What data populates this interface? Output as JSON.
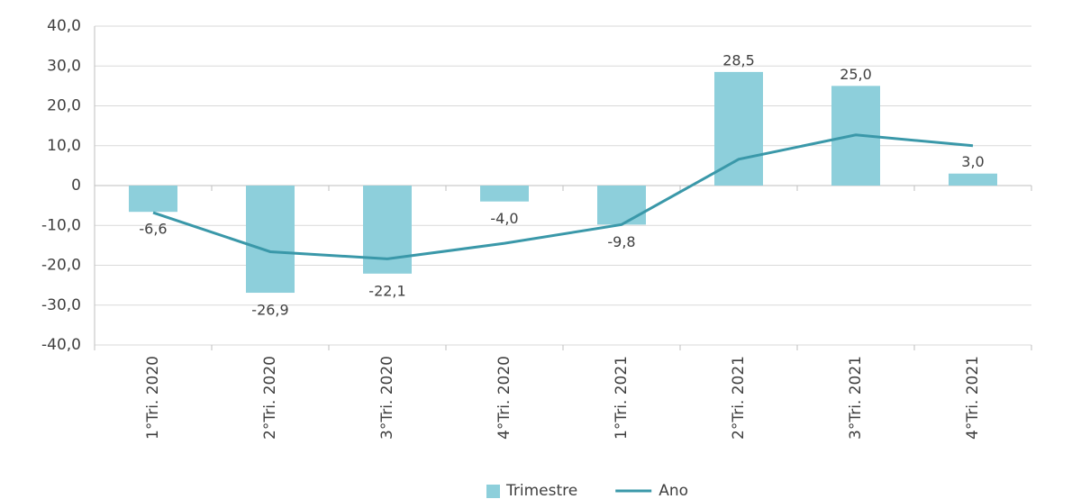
{
  "chart_data": {
    "type": "bar_line",
    "categories": [
      "1°Tri. 2020",
      "2°Tri. 2020",
      "3°Tri. 2020",
      "4°Tri. 2020",
      "1°Tri. 2021",
      "2°Tri. 2021",
      "3°Tri. 2021",
      "4°Tri. 2021"
    ],
    "series": [
      {
        "name": "Trimestre",
        "type": "bar",
        "color": "#8dcfdb",
        "values": [
          -6.6,
          -26.9,
          -22.1,
          -4.0,
          -9.8,
          28.5,
          25.0,
          3.0
        ],
        "value_labels": [
          "-6,6",
          "-26,9",
          "-22,1",
          "-4,0",
          "-9,8",
          "28,5",
          "25,0",
          "3,0"
        ]
      },
      {
        "name": "Ano",
        "type": "line",
        "color": "#3a98a9",
        "values": [
          -6.8,
          -16.6,
          -18.4,
          -14.5,
          -9.8,
          6.6,
          12.7,
          10.0
        ]
      }
    ],
    "ylim": [
      -40,
      40
    ],
    "yticks": [
      {
        "value": -40,
        "label": "-40,0"
      },
      {
        "value": -30,
        "label": "-30,0"
      },
      {
        "value": -20,
        "label": "-20,0"
      },
      {
        "value": -10,
        "label": "-10,0"
      },
      0,
      {
        "value": 10,
        "label": "10,0"
      },
      {
        "value": 20,
        "label": "20,0"
      },
      {
        "value": 30,
        "label": "30,0"
      },
      {
        "value": 40,
        "label": "40,0"
      }
    ],
    "grid": true,
    "legend": "bottom"
  }
}
